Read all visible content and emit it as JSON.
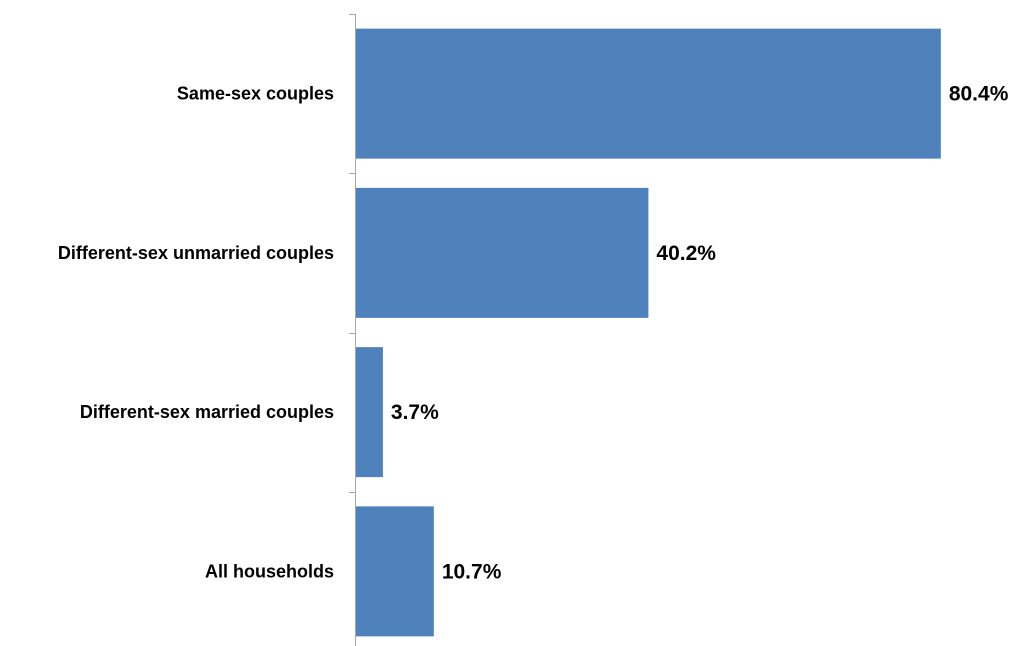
{
  "chart_data": {
    "type": "bar",
    "orientation": "horizontal",
    "title": "",
    "xlabel": "",
    "ylabel": "",
    "categories": [
      "Same-sex couples",
      "Different-sex unmarried couples",
      "Different-sex married couples",
      "All households"
    ],
    "values": [
      80.4,
      40.2,
      3.7,
      10.7
    ],
    "data_labels": [
      "80.4%",
      "40.2%",
      "3.7%",
      "10.7%"
    ],
    "value_unit": "%",
    "xlim": [
      0,
      100
    ],
    "grid": false,
    "legend": "none",
    "bar_color": "#4F81BD",
    "axis_color": "#A6A6A6"
  }
}
